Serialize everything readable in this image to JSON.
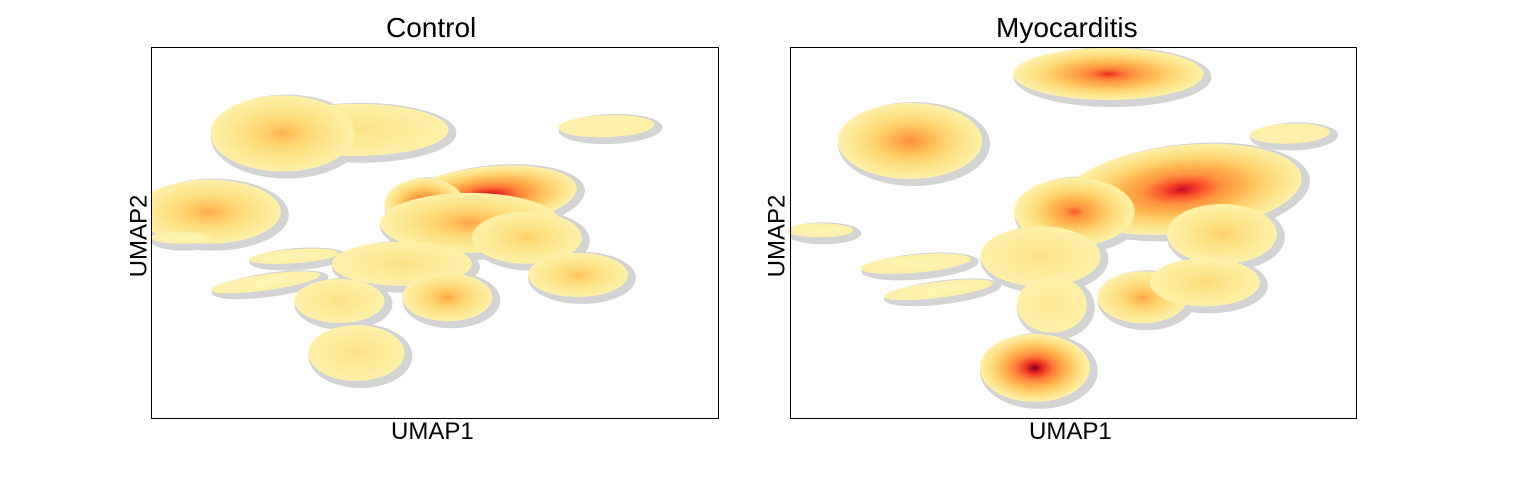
{
  "chart_data": [
    {
      "type": "scatter",
      "subtype": "umap-density-embedding",
      "title": "Control",
      "xlabel": "UMAP1",
      "ylabel": "UMAP2",
      "ticks": "none",
      "colormap": "YlOrRd",
      "background_points_color": "#d3d3d3",
      "clusters": [
        {
          "x": 3.6,
          "y": 7.8,
          "density": 0.25
        },
        {
          "x": 2.3,
          "y": 7.7,
          "density": 0.45
        },
        {
          "x": 8.0,
          "y": 7.9,
          "density": 0.1
        },
        {
          "x": 1.0,
          "y": 5.6,
          "density": 0.48
        },
        {
          "x": 0.5,
          "y": 4.9,
          "density": 0.08
        },
        {
          "x": 5.9,
          "y": 6.0,
          "density": 1.0
        },
        {
          "x": 4.8,
          "y": 5.8,
          "density": 0.85
        },
        {
          "x": 5.6,
          "y": 5.3,
          "density": 0.5
        },
        {
          "x": 6.6,
          "y": 4.9,
          "density": 0.35
        },
        {
          "x": 4.4,
          "y": 4.2,
          "density": 0.25
        },
        {
          "x": 7.5,
          "y": 3.9,
          "density": 0.4
        },
        {
          "x": 2.5,
          "y": 4.4,
          "density": 0.08
        },
        {
          "x": 2.0,
          "y": 3.7,
          "density": 0.08
        },
        {
          "x": 5.2,
          "y": 3.3,
          "density": 0.5
        },
        {
          "x": 3.3,
          "y": 3.2,
          "density": 0.25
        },
        {
          "x": 3.6,
          "y": 1.8,
          "density": 0.25
        }
      ]
    },
    {
      "type": "scatter",
      "subtype": "umap-density-embedding",
      "title": "Myocarditis",
      "xlabel": "UMAP1",
      "ylabel": "UMAP2",
      "ticks": "none",
      "colormap": "YlOrRd",
      "background_points_color": "#d3d3d3",
      "clusters": [
        {
          "x": 5.6,
          "y": 9.3,
          "density": 0.8
        },
        {
          "x": 2.1,
          "y": 7.5,
          "density": 0.6
        },
        {
          "x": 8.8,
          "y": 7.7,
          "density": 0.1
        },
        {
          "x": 0.5,
          "y": 5.1,
          "density": 0.08
        },
        {
          "x": 6.9,
          "y": 6.2,
          "density": 0.9
        },
        {
          "x": 5.0,
          "y": 5.6,
          "density": 0.7
        },
        {
          "x": 7.6,
          "y": 5.0,
          "density": 0.35
        },
        {
          "x": 4.4,
          "y": 4.4,
          "density": 0.25
        },
        {
          "x": 2.2,
          "y": 4.2,
          "density": 0.08
        },
        {
          "x": 2.6,
          "y": 3.5,
          "density": 0.08
        },
        {
          "x": 6.2,
          "y": 3.3,
          "density": 0.5
        },
        {
          "x": 7.3,
          "y": 3.7,
          "density": 0.3
        },
        {
          "x": 4.6,
          "y": 3.1,
          "density": 0.2
        },
        {
          "x": 4.3,
          "y": 1.4,
          "density": 1.0
        }
      ]
    }
  ]
}
